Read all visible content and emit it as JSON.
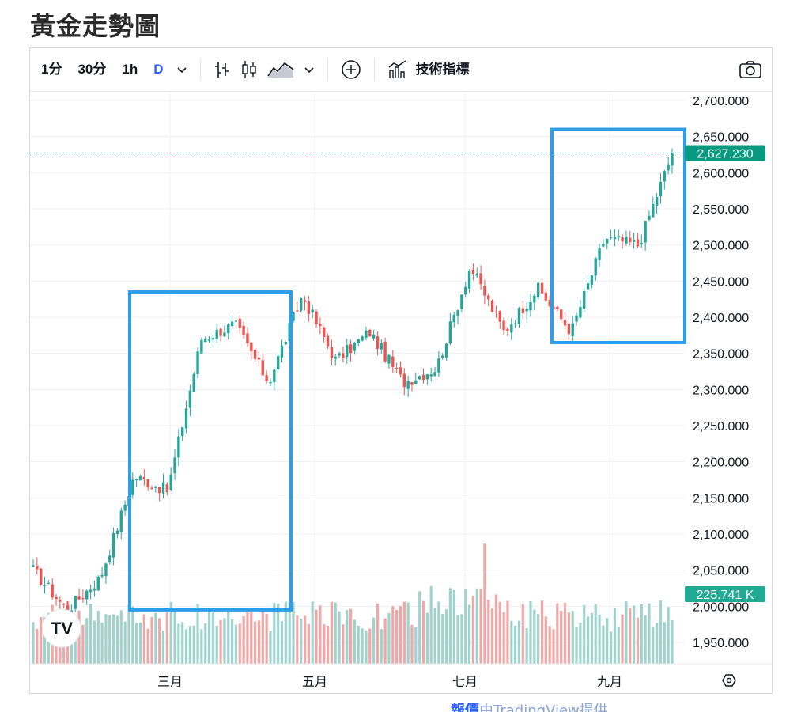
{
  "page": {
    "title": "黃金走勢圖"
  },
  "toolbar": {
    "intervals": [
      "1分",
      "30分",
      "1h",
      "D"
    ],
    "active_interval": "D",
    "indicators_label": "技術指標",
    "icons": [
      "chevron-down-icon",
      "bar-style-icon",
      "candle-style-icon",
      "area-style-icon",
      "chevron-down-icon",
      "add-compare-icon",
      "indicators-icon",
      "camera-icon"
    ]
  },
  "price_badge": "2,627.230",
  "volume_badge": "225.741 K",
  "logo_text": "TV",
  "footer": {
    "prefix": "報價",
    "text": "由TradingView提供"
  },
  "colors": {
    "up": "#26a69a",
    "down": "#ef5350",
    "highlight_box": "#2c9fe8",
    "badge": "#089981"
  },
  "chart_data": {
    "type": "candlestick",
    "y_axis": {
      "ticks": [
        "2,700.000",
        "2,650.000",
        "2,600.000",
        "2,550.000",
        "2,500.000",
        "2,450.000",
        "2,400.000",
        "2,350.000",
        "2,300.000",
        "2,250.000",
        "2,200.000",
        "2,150.000",
        "2,100.000",
        "2,050.000",
        "2,000.000",
        "1,950.000"
      ],
      "min": 1950,
      "max": 2700
    },
    "x_axis": {
      "ticks": [
        "三月",
        "五月",
        "七月",
        "九月"
      ]
    },
    "last_price": 2627.23,
    "last_volume": "225.741 K",
    "anchors": [
      {
        "month": "1月初",
        "price": 2050
      },
      {
        "month": "2月中",
        "price": 1995
      },
      {
        "month": "3月初",
        "price": 2040
      },
      {
        "month": "3月中",
        "price": 2180
      },
      {
        "month": "3月底",
        "price": 2160
      },
      {
        "month": "4月中",
        "price": 2370
      },
      {
        "month": "4月底",
        "price": 2390
      },
      {
        "month": "5月初",
        "price": 2310
      },
      {
        "month": "5月中",
        "price": 2430
      },
      {
        "month": "5月底",
        "price": 2340
      },
      {
        "month": "6月初",
        "price": 2380
      },
      {
        "month": "6月中",
        "price": 2310
      },
      {
        "month": "7月初",
        "price": 2330
      },
      {
        "month": "7月中",
        "price": 2470
      },
      {
        "month": "7月底",
        "price": 2380
      },
      {
        "month": "8月初",
        "price": 2440
      },
      {
        "month": "8月中",
        "price": 2380
      },
      {
        "month": "8月底",
        "price": 2510
      },
      {
        "month": "9月中",
        "price": 2500
      },
      {
        "month": "9月底",
        "price": 2627
      }
    ],
    "highlight_ranges": [
      {
        "from": "2月中",
        "to": "4月底",
        "price_low": 1995,
        "price_high": 2435
      },
      {
        "from": "8月中",
        "to": "9月底",
        "price_low": 2365,
        "price_high": 2660
      }
    ]
  }
}
